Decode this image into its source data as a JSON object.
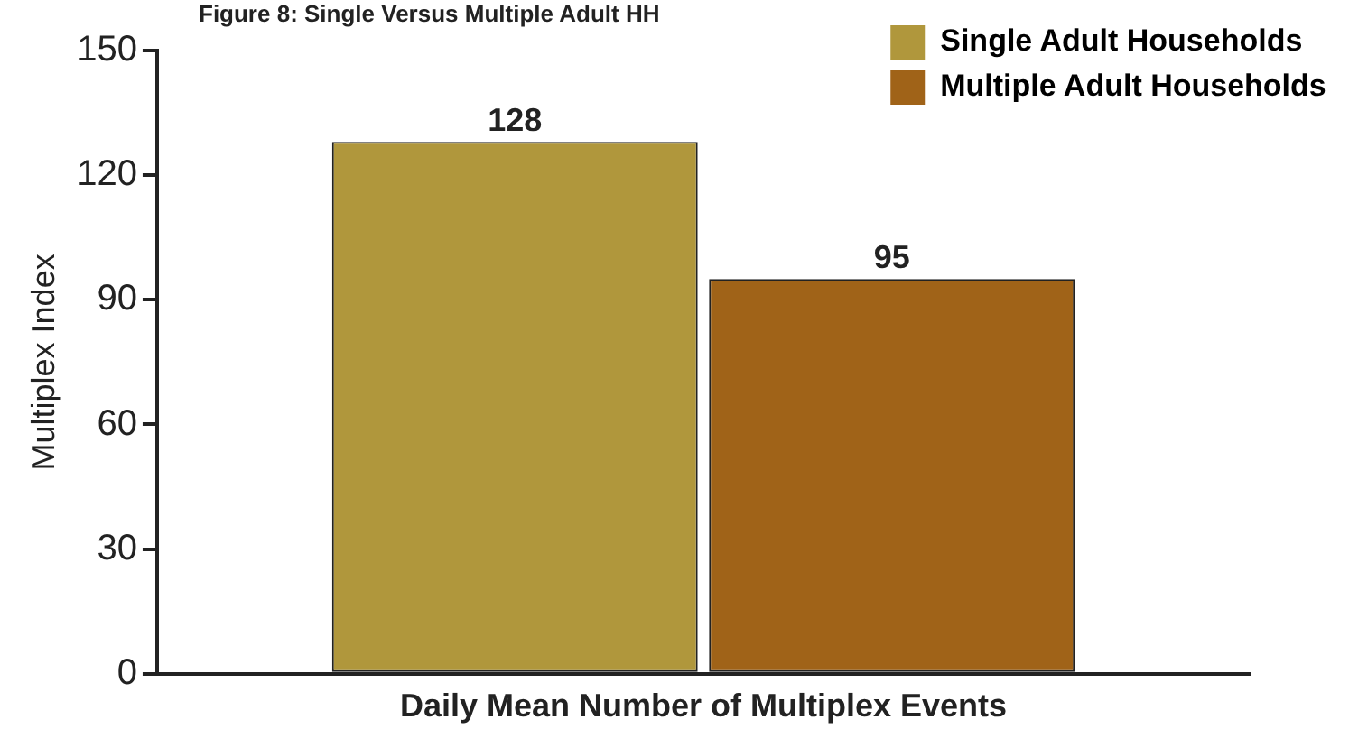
{
  "chart_data": {
    "type": "bar",
    "title": "Figure 8: Single Versus Multiple Adult HH",
    "xlabel": "Daily Mean Number of Multiplex Events",
    "ylabel": "Multiplex Index",
    "categories": [
      null
    ],
    "series": [
      {
        "name": "Single Adult Households",
        "color": "#b0973c",
        "values": [
          128
        ]
      },
      {
        "name": "Multiple Adult Households",
        "color": "#a06318",
        "values": [
          95
        ]
      }
    ],
    "ylim": [
      0,
      150
    ],
    "yticks": [
      0,
      30,
      60,
      90,
      120,
      150
    ],
    "grid": false,
    "legend": "top right",
    "data_labels": true
  }
}
